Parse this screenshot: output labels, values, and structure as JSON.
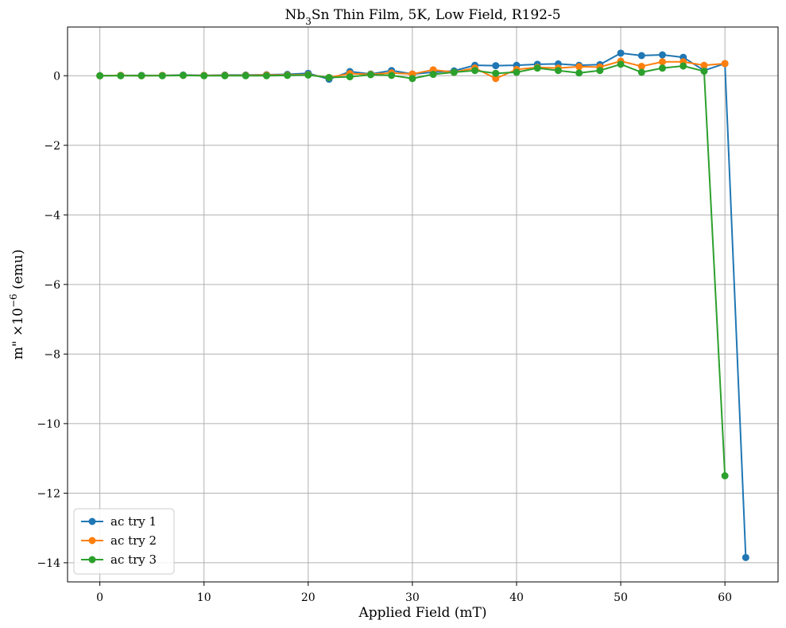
{
  "chart_data": {
    "type": "line",
    "title_main": "Nb",
    "title_sub": "3",
    "title_rest": "Sn Thin Film, 5K, Low Field, R192-5",
    "xlabel": "Applied Field (mT)",
    "ylabel_main": "m\" ×10",
    "ylabel_sup": "−6",
    "ylabel_rest": " (emu)",
    "xlim": [
      -3.1,
      65.1
    ],
    "ylim": [
      -14.55,
      1.4
    ],
    "x_ticks": [
      0,
      10,
      20,
      30,
      40,
      50,
      60
    ],
    "x_tick_labels": [
      "0",
      "10",
      "20",
      "30",
      "40",
      "50",
      "60"
    ],
    "y_ticks": [
      0,
      -2,
      -4,
      -6,
      -8,
      -10,
      -12,
      -14
    ],
    "y_tick_labels": [
      "0",
      "−2",
      "−4",
      "−6",
      "−8",
      "−10",
      "−12",
      "−14"
    ],
    "grid": true,
    "legend_position": "bottom-left",
    "series": [
      {
        "name": "ac try 1",
        "color": "#1f77b4",
        "x": [
          0,
          2,
          4,
          6,
          8,
          10,
          12,
          14,
          16,
          18,
          20,
          22,
          24,
          26,
          28,
          30,
          32,
          34,
          36,
          38,
          40,
          42,
          44,
          46,
          48,
          50,
          52,
          54,
          56,
          58,
          60,
          62
        ],
        "y": [
          0.0,
          0.01,
          0.01,
          0.01,
          0.02,
          0.01,
          0.02,
          0.02,
          0.03,
          0.04,
          0.07,
          -0.1,
          0.12,
          0.05,
          0.15,
          0.05,
          0.1,
          0.14,
          0.3,
          0.29,
          0.3,
          0.33,
          0.34,
          0.3,
          0.32,
          0.65,
          0.58,
          0.6,
          0.53,
          0.15,
          0.35,
          -13.85
        ]
      },
      {
        "name": "ac try 2",
        "color": "#ff7f0e",
        "x": [
          0,
          2,
          4,
          6,
          8,
          10,
          12,
          14,
          16,
          18,
          20,
          22,
          24,
          26,
          28,
          30,
          32,
          34,
          36,
          38,
          40,
          42,
          44,
          46,
          48,
          50,
          52,
          54,
          56,
          58,
          60
        ],
        "y": [
          0.0,
          0.01,
          0.0,
          0.01,
          0.01,
          0.01,
          0.01,
          0.01,
          0.02,
          0.02,
          0.03,
          -0.05,
          0.06,
          0.04,
          0.08,
          0.05,
          0.17,
          0.1,
          0.22,
          -0.08,
          0.18,
          0.24,
          0.22,
          0.26,
          0.25,
          0.42,
          0.27,
          0.4,
          0.4,
          0.3,
          0.35
        ]
      },
      {
        "name": "ac try 3",
        "color": "#2ca02c",
        "x": [
          0,
          2,
          4,
          6,
          8,
          10,
          12,
          14,
          16,
          18,
          20,
          22,
          24,
          26,
          28,
          30,
          32,
          34,
          36,
          38,
          40,
          42,
          44,
          46,
          48,
          50,
          52,
          54,
          56,
          58,
          60
        ],
        "y": [
          0.0,
          0.0,
          0.0,
          0.0,
          0.01,
          0.0,
          0.0,
          0.0,
          0.0,
          0.01,
          0.02,
          -0.05,
          -0.03,
          0.03,
          0.01,
          -0.08,
          0.04,
          0.1,
          0.15,
          0.07,
          0.1,
          0.22,
          0.15,
          0.08,
          0.15,
          0.33,
          0.1,
          0.22,
          0.28,
          0.13,
          -11.5
        ]
      }
    ]
  }
}
